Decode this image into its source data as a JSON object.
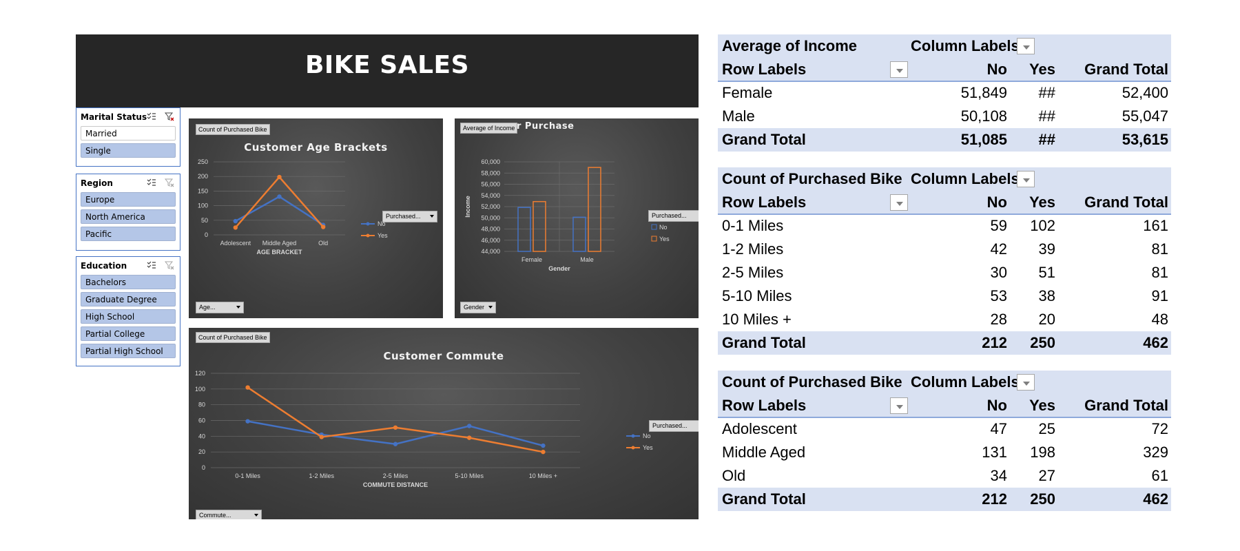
{
  "dashboard": {
    "title": "BIKE SALES"
  },
  "slicers": [
    {
      "title": "Marital Status",
      "items": [
        {
          "label": "Married",
          "selected": false
        },
        {
          "label": "Single",
          "selected": true
        }
      ]
    },
    {
      "title": "Region",
      "items": [
        {
          "label": "Europe",
          "selected": true
        },
        {
          "label": "North America",
          "selected": true
        },
        {
          "label": "Pacific",
          "selected": true
        }
      ]
    },
    {
      "title": "Education",
      "items": [
        {
          "label": "Bachelors",
          "selected": true
        },
        {
          "label": "Graduate Degree",
          "selected": true
        },
        {
          "label": "High School",
          "selected": true
        },
        {
          "label": "Partial College",
          "selected": true
        },
        {
          "label": "Partial High School",
          "selected": true
        }
      ]
    }
  ],
  "charts_ui": {
    "age": {
      "value_button": "Count of Purchased Bike",
      "legend_button": "Purchased...",
      "axis_button": "Age..."
    },
    "income": {
      "value_button": "Average of Income",
      "title_visible": "r Purchase",
      "legend_button": "Purchased...",
      "axis_button": "Gender"
    },
    "commute": {
      "value_button": "Count of Purchased Bike",
      "legend_button": "Purchased...",
      "axis_button": "Commute..."
    }
  },
  "colors": {
    "no": "#4472c4",
    "yes": "#ed7d31",
    "header_fill": "#d9e1f2"
  },
  "chart_data": [
    {
      "type": "line",
      "title": "Customer Age Brackets",
      "xlabel": "AGE BRACKET",
      "ylabel": "",
      "categories": [
        "Adolescent",
        "Middle Aged",
        "Old"
      ],
      "series": [
        {
          "name": "No",
          "values": [
            47,
            131,
            34
          ]
        },
        {
          "name": "Yes",
          "values": [
            25,
            198,
            27
          ]
        }
      ],
      "ylim": [
        0,
        250
      ],
      "yticks": [
        0,
        50,
        100,
        150,
        200,
        250
      ],
      "grid": true,
      "legend": "right"
    },
    {
      "type": "bar",
      "title": "",
      "xlabel": "Gender",
      "ylabel": "Income",
      "categories": [
        "Female",
        "Male"
      ],
      "series": [
        {
          "name": "No",
          "values": [
            51849,
            50108
          ]
        },
        {
          "name": "Yes",
          "values": [
            52900,
            59000
          ]
        }
      ],
      "ylim": [
        44000,
        60000
      ],
      "yticks": [
        "44,000",
        "46,000",
        "48,000",
        "50,000",
        "52,000",
        "54,000",
        "56,000",
        "58,000",
        "60,000"
      ],
      "grid": true,
      "legend": "right"
    },
    {
      "type": "line",
      "title": "Customer Commute",
      "xlabel": "COMMUTE DISTANCE",
      "ylabel": "",
      "categories": [
        "0-1 Miles",
        "1-2 Miles",
        "2-5 Miles",
        "5-10 Miles",
        "10 Miles +"
      ],
      "series": [
        {
          "name": "No",
          "values": [
            59,
            42,
            30,
            53,
            28
          ]
        },
        {
          "name": "Yes",
          "values": [
            102,
            39,
            51,
            38,
            20
          ]
        }
      ],
      "ylim": [
        0,
        120
      ],
      "yticks": [
        0,
        20,
        40,
        60,
        80,
        100,
        120
      ],
      "grid": true,
      "legend": "right"
    }
  ],
  "pivots": [
    {
      "header1": [
        "Average of Income",
        "Column Labels"
      ],
      "header2": [
        "Row Labels",
        "No",
        "Yes",
        "Grand Total"
      ],
      "rows": [
        [
          "Female",
          "51,849",
          "##",
          "52,400"
        ],
        [
          "Male",
          "50,108",
          "##",
          "55,047"
        ]
      ],
      "total": [
        "Grand Total",
        "51,085",
        "##",
        "53,615"
      ]
    },
    {
      "header1": [
        "Count of Purchased Bike",
        "Column Labels"
      ],
      "header2": [
        "Row Labels",
        "No",
        "Yes",
        "Grand Total"
      ],
      "rows": [
        [
          "0-1 Miles",
          "59",
          "102",
          "161"
        ],
        [
          "1-2 Miles",
          "42",
          "39",
          "81"
        ],
        [
          "2-5 Miles",
          "30",
          "51",
          "81"
        ],
        [
          "5-10 Miles",
          "53",
          "38",
          "91"
        ],
        [
          "10 Miles +",
          "28",
          "20",
          "48"
        ]
      ],
      "total": [
        "Grand Total",
        "212",
        "250",
        "462"
      ]
    },
    {
      "header1": [
        "Count of Purchased Bike",
        "Column Labels"
      ],
      "header2": [
        "Row Labels",
        "No",
        "Yes",
        "Grand Total"
      ],
      "rows": [
        [
          "Adolescent",
          "47",
          "25",
          "72"
        ],
        [
          "Middle Aged",
          "131",
          "198",
          "329"
        ],
        [
          "Old",
          "34",
          "27",
          "61"
        ]
      ],
      "total": [
        "Grand Total",
        "212",
        "250",
        "462"
      ]
    }
  ]
}
